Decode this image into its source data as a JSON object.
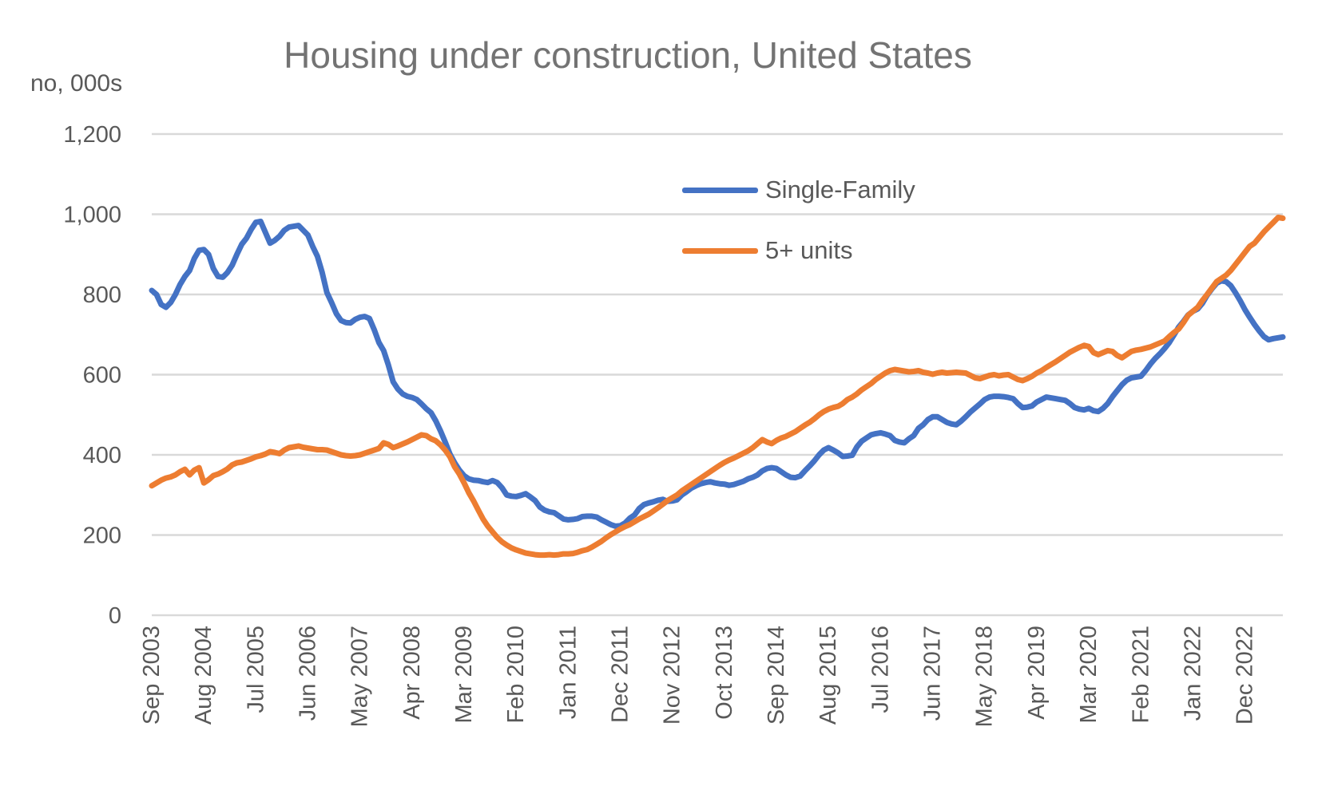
{
  "title": "Housing under construction, United States",
  "y_axis": {
    "unit_label": "no, 000s",
    "tick_labels": [
      "0",
      "200",
      "400",
      "600",
      "800",
      "1,000",
      "1,200"
    ],
    "tick_values": [
      0,
      200,
      400,
      600,
      800,
      1000,
      1200
    ]
  },
  "x_axis": {
    "tick_labels": [
      "Sep 2003",
      "Aug 2004",
      "Jul 2005",
      "Jun 2006",
      "May 2007",
      "Apr 2008",
      "Mar 2009",
      "Feb 2010",
      "Jan 2011",
      "Dec 2011",
      "Nov 2012",
      "Oct 2013",
      "Sep 2014",
      "Aug 2015",
      "Jul 2016",
      "Jun 2017",
      "May 2018",
      "Apr 2019",
      "Mar 2020",
      "Feb 2021",
      "Jan 2022",
      "Dec 2022"
    ],
    "months_between_ticks": 11
  },
  "legend": [
    {
      "label": "Single-Family",
      "color": "#4472C4"
    },
    {
      "label": "5+ units",
      "color": "#ED7D31"
    }
  ],
  "colors": {
    "gridline": "#D9D9D9",
    "axis_text": "#595959",
    "title_text": "#737373",
    "background": "#FFFFFF",
    "series_blue": "#4472C4",
    "series_orange": "#ED7D31"
  },
  "chart_data": {
    "type": "line",
    "title": "Housing under construction, United States",
    "ylabel": "no, 000s",
    "x_start": "Sep 2003",
    "x_end": "Aug 2023",
    "frequency": "monthly",
    "ylim": [
      0,
      1200
    ],
    "grid": true,
    "legend_position": "upper-middle-right",
    "x_tick_labels": [
      "Sep 2003",
      "Aug 2004",
      "Jul 2005",
      "Jun 2006",
      "May 2007",
      "Apr 2008",
      "Mar 2009",
      "Feb 2010",
      "Jan 2011",
      "Dec 2011",
      "Nov 2012",
      "Oct 2013",
      "Sep 2014",
      "Aug 2015",
      "Jul 2016",
      "Jun 2017",
      "May 2018",
      "Apr 2019",
      "Mar 2020",
      "Feb 2021",
      "Jan 2022",
      "Dec 2022"
    ],
    "series": [
      {
        "name": "Single-Family",
        "color": "#4472C4",
        "values": [
          810,
          800,
          775,
          768,
          780,
          800,
          825,
          845,
          860,
          890,
          910,
          912,
          900,
          865,
          845,
          843,
          855,
          873,
          900,
          925,
          940,
          962,
          980,
          982,
          955,
          928,
          935,
          945,
          960,
          968,
          970,
          972,
          960,
          948,
          920,
          895,
          855,
          805,
          780,
          752,
          735,
          730,
          729,
          738,
          743,
          745,
          740,
          712,
          680,
          660,
          624,
          582,
          564,
          552,
          546,
          543,
          538,
          527,
          515,
          505,
          485,
          460,
          432,
          402,
          380,
          362,
          348,
          340,
          337,
          336,
          333,
          331,
          336,
          331,
          318,
          300,
          297,
          296,
          299,
          303,
          295,
          286,
          270,
          262,
          258,
          256,
          248,
          240,
          238,
          239,
          241,
          246,
          247,
          247,
          245,
          238,
          232,
          226,
          222,
          223,
          230,
          242,
          250,
          266,
          276,
          280,
          283,
          287,
          289,
          284,
          285,
          288,
          300,
          308,
          317,
          323,
          328,
          331,
          333,
          330,
          328,
          327,
          324,
          326,
          330,
          334,
          340,
          344,
          350,
          360,
          366,
          368,
          366,
          358,
          350,
          344,
          343,
          347,
          360,
          372,
          385,
          400,
          412,
          418,
          412,
          405,
          396,
          397,
          399,
          420,
          434,
          442,
          450,
          453,
          455,
          452,
          448,
          436,
          432,
          430,
          440,
          448,
          466,
          475,
          488,
          495,
          495,
          488,
          481,
          477,
          475,
          484,
          495,
          507,
          517,
          527,
          538,
          544,
          546,
          546,
          545,
          543,
          540,
          528,
          518,
          519,
          522,
          532,
          538,
          544,
          542,
          540,
          538,
          536,
          528,
          518,
          514,
          512,
          516,
          510,
          508,
          516,
          528,
          545,
          560,
          575,
          586,
          592,
          594,
          596,
          610,
          626,
          640,
          652,
          665,
          680,
          699,
          719,
          733,
          749,
          758,
          764,
          778,
          798,
          814,
          828,
          834,
          832,
          822,
          804,
          784,
          762,
          743,
          725,
          709,
          695,
          687,
          690,
          692,
          694
        ]
      },
      {
        "name": "5+ units",
        "color": "#ED7D31",
        "values": [
          323,
          330,
          337,
          342,
          345,
          350,
          358,
          364,
          350,
          362,
          368,
          330,
          338,
          348,
          352,
          358,
          365,
          375,
          380,
          382,
          386,
          390,
          395,
          398,
          402,
          408,
          406,
          403,
          412,
          418,
          420,
          422,
          419,
          417,
          415,
          413,
          413,
          412,
          408,
          404,
          400,
          398,
          397,
          398,
          400,
          404,
          408,
          412,
          416,
          430,
          426,
          418,
          422,
          427,
          432,
          438,
          444,
          450,
          448,
          440,
          435,
          425,
          412,
          395,
          370,
          352,
          330,
          305,
          285,
          262,
          240,
          222,
          208,
          194,
          183,
          175,
          168,
          163,
          159,
          155,
          153,
          151,
          150,
          150,
          151,
          150,
          151,
          153,
          153,
          154,
          157,
          161,
          164,
          170,
          177,
          184,
          193,
          201,
          208,
          215,
          221,
          226,
          233,
          240,
          246,
          252,
          260,
          268,
          277,
          286,
          293,
          300,
          310,
          318,
          326,
          334,
          342,
          350,
          358,
          366,
          374,
          381,
          387,
          392,
          398,
          404,
          410,
          418,
          428,
          438,
          432,
          428,
          436,
          442,
          446,
          452,
          458,
          466,
          474,
          481,
          490,
          500,
          508,
          514,
          518,
          521,
          528,
          538,
          544,
          552,
          562,
          570,
          578,
          588,
          596,
          604,
          610,
          613,
          611,
          609,
          607,
          608,
          610,
          606,
          604,
          601,
          604,
          606,
          604,
          605,
          606,
          605,
          604,
          598,
          592,
          590,
          594,
          598,
          600,
          597,
          599,
          600,
          594,
          588,
          585,
          590,
          596,
          604,
          610,
          618,
          625,
          632,
          640,
          648,
          656,
          662,
          668,
          673,
          670,
          655,
          650,
          655,
          660,
          658,
          648,
          642,
          650,
          658,
          661,
          663,
          666,
          669,
          674,
          679,
          684,
          695,
          705,
          714,
          730,
          748,
          758,
          768,
          785,
          800,
          816,
          832,
          840,
          848,
          860,
          875,
          890,
          905,
          920,
          928,
          942,
          956,
          968,
          980,
          992,
          990
        ]
      }
    ]
  }
}
